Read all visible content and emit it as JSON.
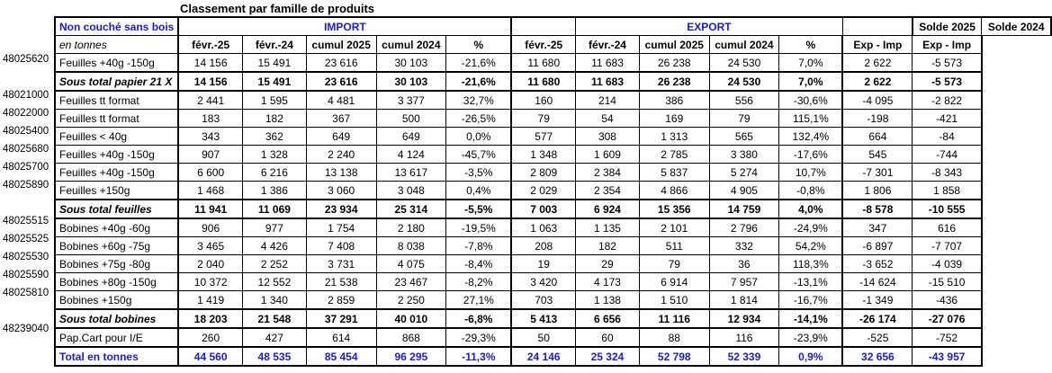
{
  "title": "Classement par famille de produits",
  "header": {
    "row_label": "Non couché sans bois",
    "unit_label": "en tonnes",
    "import": "IMPORT",
    "export": "EXPORT",
    "solde2025": "Solde 2025",
    "solde2024": "Solde 2024",
    "cols": [
      "févr.-25",
      "févr.-24",
      "cumul 2025",
      "cumul 2024",
      "%",
      "févr.-25",
      "févr.-24",
      "cumul 2025",
      "cumul 2024",
      "%",
      "Exp - Imp",
      "Exp - Imp"
    ]
  },
  "rows": [
    {
      "type": "d",
      "code": "48025620",
      "label": "Feuilles +40g -150g",
      "v": [
        "14 156",
        "15 491",
        "23 616",
        "30 103",
        "-21,6%",
        "11 680",
        "11 683",
        "26 238",
        "24 530",
        "7,0%",
        "2 622",
        "-5 573"
      ]
    },
    {
      "type": "sub",
      "code": "",
      "label": "Sous total papier 21 X",
      "v": [
        "14 156",
        "15 491",
        "23 616",
        "30 103",
        "-21,6%",
        "11 680",
        "11 683",
        "26 238",
        "24 530",
        "7,0%",
        "2 622",
        "-5 573"
      ]
    },
    {
      "type": "d",
      "code": "48021000",
      "label": "Feuilles tt format",
      "v": [
        "2 441",
        "1 595",
        "4 481",
        "3 377",
        "32,7%",
        "160",
        "214",
        "386",
        "556",
        "-30,6%",
        "-4 095",
        "-2 822"
      ]
    },
    {
      "type": "d",
      "code": "48022000",
      "label": "Feuilles tt format",
      "v": [
        "183",
        "182",
        "367",
        "500",
        "-26,5%",
        "79",
        "54",
        "169",
        "79",
        "115,1%",
        "-198",
        "-421"
      ]
    },
    {
      "type": "d",
      "code": "48025400",
      "label": "Feuilles < 40g",
      "v": [
        "343",
        "362",
        "649",
        "649",
        "0,0%",
        "577",
        "308",
        "1 313",
        "565",
        "132,4%",
        "664",
        "-84"
      ]
    },
    {
      "type": "d",
      "code": "48025680",
      "label": "Feuilles +40g -150g",
      "v": [
        "907",
        "1 328",
        "2 240",
        "4 124",
        "-45,7%",
        "1 348",
        "1 609",
        "2 785",
        "3 380",
        "-17,6%",
        "545",
        "-744"
      ]
    },
    {
      "type": "d",
      "code": "48025700",
      "label": "Feuilles +40g -150g",
      "v": [
        "6 600",
        "6 216",
        "13 138",
        "13 617",
        "-3,5%",
        "2 809",
        "2 384",
        "5 837",
        "5 274",
        "10,7%",
        "-7 301",
        "-8 343"
      ]
    },
    {
      "type": "d",
      "code": "48025890",
      "label": "Feuilles +150g",
      "v": [
        "1 468",
        "1 386",
        "3 060",
        "3 048",
        "0,4%",
        "2 029",
        "2 354",
        "4 866",
        "4 905",
        "-0,8%",
        "1 806",
        "1 858"
      ]
    },
    {
      "type": "sub",
      "code": "",
      "label": "Sous total feuilles",
      "v": [
        "11 941",
        "11 069",
        "23 934",
        "25 314",
        "-5,5%",
        "7 003",
        "6 924",
        "15 356",
        "14 759",
        "4,0%",
        "-8 578",
        "-10 555"
      ]
    },
    {
      "type": "d",
      "code": "48025515",
      "label": "Bobines +40g -60g",
      "v": [
        "906",
        "977",
        "1 754",
        "2 180",
        "-19,5%",
        "1 063",
        "1 135",
        "2 101",
        "2 796",
        "-24,9%",
        "347",
        "616"
      ]
    },
    {
      "type": "d",
      "code": "48025525",
      "label": "Bobines +60g -75g",
      "v": [
        "3 465",
        "4 426",
        "7 408",
        "8 038",
        "-7,8%",
        "208",
        "182",
        "511",
        "332",
        "54,2%",
        "-6 897",
        "-7 707"
      ]
    },
    {
      "type": "d",
      "code": "48025530",
      "label": "Bobines +75g -80g",
      "v": [
        "2 040",
        "2 252",
        "3 731",
        "4 075",
        "-8,4%",
        "19",
        "29",
        "79",
        "36",
        "118,3%",
        "-3 652",
        "-4 039"
      ]
    },
    {
      "type": "d",
      "code": "48025590",
      "label": "Bobines +80g -150g",
      "v": [
        "10 372",
        "12 552",
        "21 538",
        "23 467",
        "-8,2%",
        "3 420",
        "4 173",
        "6 914",
        "7 957",
        "-13,1%",
        "-14 624",
        "-15 510"
      ]
    },
    {
      "type": "d",
      "code": "48025810",
      "label": "Bobines +150g",
      "v": [
        "1 419",
        "1 340",
        "2 859",
        "2 250",
        "27,1%",
        "703",
        "1 138",
        "1 510",
        "1 814",
        "-16,7%",
        "-1 349",
        "-436"
      ]
    },
    {
      "type": "sub",
      "code": "",
      "label": "Sous total bobines",
      "v": [
        "18 203",
        "21 548",
        "37 291",
        "40 010",
        "-6,8%",
        "5 413",
        "6 656",
        "11 116",
        "12 934",
        "-14,1%",
        "-26 174",
        "-27 076"
      ]
    },
    {
      "type": "gap",
      "code": "48239040",
      "label": "Pap.Cart pour I/E",
      "v": [
        "260",
        "427",
        "614",
        "868",
        "-29,3%",
        "50",
        "60",
        "88",
        "116",
        "-23,9%",
        "-525",
        "-752"
      ]
    },
    {
      "type": "tot",
      "code": "",
      "label": "Total en tonnes",
      "v": [
        "44 560",
        "48 535",
        "85 454",
        "96 295",
        "-11,3%",
        "24 146",
        "25 324",
        "52 798",
        "52 339",
        "0,9%",
        "32 656",
        "-43 957"
      ]
    }
  ]
}
